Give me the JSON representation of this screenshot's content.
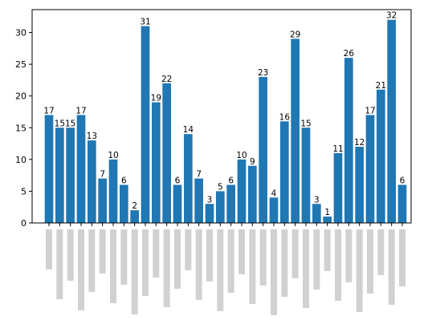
{
  "chart_data": {
    "type": "bar",
    "categories": [
      null,
      null,
      null,
      null,
      null,
      null,
      null,
      null,
      null,
      null,
      null,
      null,
      null,
      null,
      null,
      null,
      null,
      null,
      null,
      null,
      null,
      null,
      null,
      null,
      null,
      null,
      null,
      null,
      null,
      null,
      null,
      null,
      null,
      null
    ],
    "values": [
      17,
      15,
      15,
      17,
      13,
      7,
      10,
      6,
      2,
      31,
      19,
      22,
      6,
      14,
      7,
      3,
      5,
      6,
      10,
      9,
      23,
      4,
      16,
      29,
      15,
      3,
      1,
      11,
      26,
      12,
      17,
      21,
      32,
      6
    ],
    "color": "#1f77b4",
    "ylim": [
      0,
      33.6
    ],
    "yticks": [
      0,
      5,
      10,
      15,
      20,
      25,
      30
    ]
  }
}
